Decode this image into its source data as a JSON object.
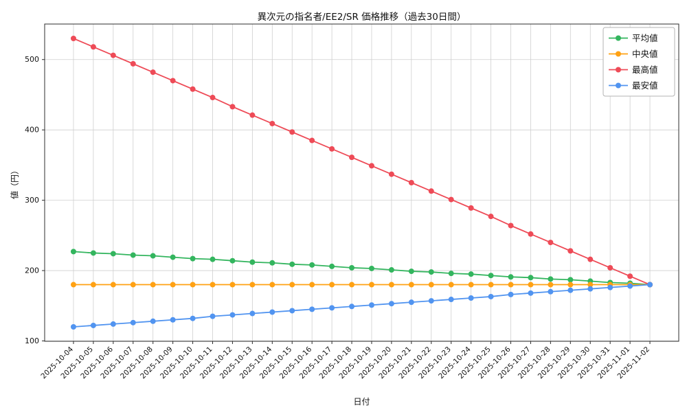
{
  "chart_data": {
    "type": "line",
    "title": "異次元の指名者/EE2/SR 価格推移（過去30日間）",
    "xlabel": "日付",
    "ylabel": "値（円）",
    "x": [
      "2025-10-04",
      "2025-10-05",
      "2025-10-06",
      "2025-10-07",
      "2025-10-08",
      "2025-10-09",
      "2025-10-10",
      "2025-10-11",
      "2025-10-12",
      "2025-10-13",
      "2025-10-14",
      "2025-10-15",
      "2025-10-16",
      "2025-10-17",
      "2025-10-18",
      "2025-10-19",
      "2025-10-20",
      "2025-10-21",
      "2025-10-22",
      "2025-10-23",
      "2025-10-24",
      "2025-10-25",
      "2025-10-26",
      "2025-10-27",
      "2025-10-28",
      "2025-10-29",
      "2025-10-30",
      "2025-10-31",
      "2025-11-01",
      "2025-11-02"
    ],
    "ylim": [
      99.5,
      550.5
    ],
    "yticks": [
      100,
      200,
      300,
      400,
      500
    ],
    "grid": true,
    "legend_position": "upper right",
    "series": [
      {
        "name": "平均値",
        "color": "#33b55e",
        "values": [
          227,
          225,
          224,
          222,
          221,
          219,
          217,
          216,
          214,
          212,
          211,
          209,
          208,
          206,
          204,
          203,
          201,
          199,
          198,
          196,
          195,
          193,
          191,
          190,
          188,
          187,
          185,
          183,
          182,
          180
        ]
      },
      {
        "name": "中央値",
        "color": "#ffa113",
        "values": [
          180,
          180,
          180,
          180,
          180,
          180,
          180,
          180,
          180,
          180,
          180,
          180,
          180,
          180,
          180,
          180,
          180,
          180,
          180,
          180,
          180,
          180,
          180,
          180,
          180,
          180,
          180,
          180,
          180,
          180
        ]
      },
      {
        "name": "最高値",
        "color": "#ee4b57",
        "values": [
          530,
          518,
          506,
          494,
          482,
          470,
          458,
          446,
          433,
          421,
          409,
          397,
          385,
          373,
          361,
          349,
          337,
          325,
          313,
          301,
          289,
          277,
          264,
          252,
          240,
          228,
          216,
          204,
          192,
          180
        ]
      },
      {
        "name": "最安値",
        "color": "#5194f0",
        "values": [
          120,
          122,
          124,
          126,
          128,
          130,
          132,
          135,
          137,
          139,
          141,
          143,
          145,
          147,
          149,
          151,
          153,
          155,
          157,
          159,
          161,
          163,
          166,
          168,
          170,
          172,
          174,
          176,
          178,
          180
        ]
      }
    ]
  }
}
